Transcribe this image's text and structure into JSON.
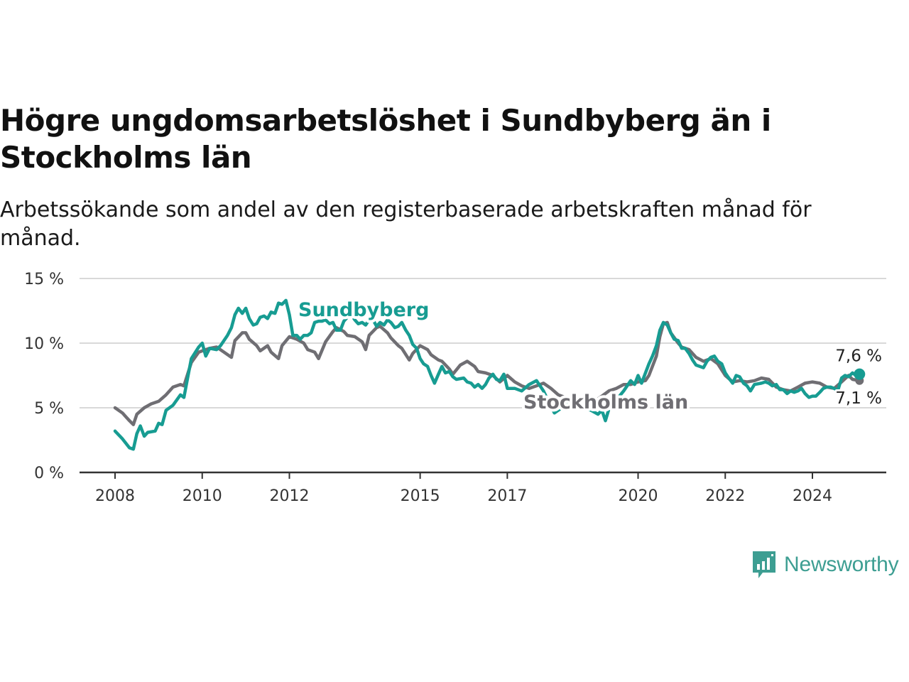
{
  "title": "Högre ungdomsarbetslöshet i Sundbyberg än i Stockholms län",
  "subtitle": "Arbetssökande som andel av den registerbaserade arbetskraften månad för månad.",
  "brand": {
    "name": "Newsworthy",
    "icon": "bar-chart-speech-bubble-icon",
    "color": "#3d9e92"
  },
  "chart_data": {
    "type": "line",
    "ylim": [
      0,
      15
    ],
    "y_ticks": [
      0,
      5,
      10,
      15
    ],
    "y_tick_labels": [
      "0 %",
      "5 %",
      "10 %",
      "15 %"
    ],
    "x_tick_labels": [
      "2008",
      "2010",
      "2012",
      "2015",
      "2017",
      "2020",
      "2022",
      "2024"
    ],
    "x_tick_values": [
      2008.0,
      2010.0,
      2012.0,
      2015.0,
      2017.0,
      2020.0,
      2022.0,
      2024.0
    ],
    "grid": true,
    "xlim": [
      2007.25,
      2025.8
    ],
    "series": [
      {
        "name": "Sundbyberg",
        "color": "#179c92",
        "end_label": "7,6 %",
        "points": [
          [
            2008.0,
            3.2
          ],
          [
            2008.17,
            2.6
          ],
          [
            2008.33,
            1.9
          ],
          [
            2008.42,
            1.8
          ],
          [
            2008.5,
            3.0
          ],
          [
            2008.58,
            3.6
          ],
          [
            2008.67,
            2.8
          ],
          [
            2008.75,
            3.1
          ],
          [
            2008.92,
            3.2
          ],
          [
            2009.0,
            3.8
          ],
          [
            2009.08,
            3.7
          ],
          [
            2009.17,
            4.8
          ],
          [
            2009.33,
            5.2
          ],
          [
            2009.5,
            6.0
          ],
          [
            2009.58,
            5.8
          ],
          [
            2009.75,
            8.8
          ],
          [
            2009.92,
            9.7
          ],
          [
            2010.0,
            10.0
          ],
          [
            2010.08,
            9.0
          ],
          [
            2010.17,
            9.6
          ],
          [
            2010.33,
            9.5
          ],
          [
            2010.42,
            9.8
          ],
          [
            2010.58,
            10.6
          ],
          [
            2010.67,
            11.2
          ],
          [
            2010.75,
            12.2
          ],
          [
            2010.83,
            12.7
          ],
          [
            2010.92,
            12.3
          ],
          [
            2011.0,
            12.7
          ],
          [
            2011.08,
            11.9
          ],
          [
            2011.17,
            11.4
          ],
          [
            2011.25,
            11.5
          ],
          [
            2011.33,
            12.0
          ],
          [
            2011.42,
            12.1
          ],
          [
            2011.5,
            11.9
          ],
          [
            2011.58,
            12.4
          ],
          [
            2011.67,
            12.3
          ],
          [
            2011.75,
            13.1
          ],
          [
            2011.83,
            13.0
          ],
          [
            2011.92,
            13.3
          ],
          [
            2012.0,
            12.2
          ],
          [
            2012.08,
            10.6
          ],
          [
            2012.17,
            10.6
          ],
          [
            2012.25,
            10.3
          ],
          [
            2012.33,
            10.6
          ],
          [
            2012.42,
            10.6
          ],
          [
            2012.5,
            10.8
          ],
          [
            2012.58,
            11.6
          ],
          [
            2012.67,
            11.7
          ],
          [
            2012.75,
            11.7
          ],
          [
            2012.83,
            11.8
          ],
          [
            2012.92,
            11.5
          ],
          [
            2013.0,
            11.6
          ],
          [
            2013.08,
            11.0
          ],
          [
            2013.17,
            11.0
          ],
          [
            2013.25,
            11.7
          ],
          [
            2013.33,
            12.0
          ],
          [
            2013.42,
            12.2
          ],
          [
            2013.5,
            11.8
          ],
          [
            2013.58,
            11.5
          ],
          [
            2013.67,
            11.6
          ],
          [
            2013.75,
            11.4
          ],
          [
            2013.83,
            11.8
          ],
          [
            2013.92,
            11.8
          ],
          [
            2014.0,
            11.3
          ],
          [
            2014.08,
            11.6
          ],
          [
            2014.17,
            11.4
          ],
          [
            2014.25,
            11.8
          ],
          [
            2014.33,
            11.6
          ],
          [
            2014.42,
            11.2
          ],
          [
            2014.5,
            11.3
          ],
          [
            2014.58,
            11.6
          ],
          [
            2014.67,
            11.0
          ],
          [
            2014.75,
            10.6
          ],
          [
            2014.83,
            9.9
          ],
          [
            2014.92,
            9.6
          ],
          [
            2015.0,
            8.8
          ],
          [
            2015.08,
            8.4
          ],
          [
            2015.17,
            8.2
          ],
          [
            2015.25,
            7.5
          ],
          [
            2015.33,
            6.9
          ],
          [
            2015.42,
            7.6
          ],
          [
            2015.5,
            8.2
          ],
          [
            2015.58,
            7.7
          ],
          [
            2015.67,
            7.8
          ],
          [
            2015.75,
            7.4
          ],
          [
            2015.83,
            7.2
          ],
          [
            2016.0,
            7.3
          ],
          [
            2016.08,
            7.0
          ],
          [
            2016.17,
            6.9
          ],
          [
            2016.25,
            6.6
          ],
          [
            2016.33,
            6.8
          ],
          [
            2016.42,
            6.5
          ],
          [
            2016.5,
            6.8
          ],
          [
            2016.58,
            7.3
          ],
          [
            2016.67,
            7.6
          ],
          [
            2016.75,
            7.2
          ],
          [
            2016.83,
            7.1
          ],
          [
            2016.92,
            7.6
          ],
          [
            2017.0,
            6.5
          ],
          [
            2017.17,
            6.5
          ],
          [
            2017.33,
            6.3
          ],
          [
            2017.5,
            6.8
          ],
          [
            2017.67,
            7.1
          ],
          [
            2017.83,
            6.3
          ],
          [
            2018.0,
            5.1
          ],
          [
            2018.08,
            4.6
          ],
          [
            2018.25,
            5.0
          ],
          [
            2018.42,
            5.3
          ],
          [
            2018.58,
            5.4
          ],
          [
            2018.75,
            5.0
          ],
          [
            2018.92,
            4.8
          ],
          [
            2019.08,
            4.5
          ],
          [
            2019.17,
            4.8
          ],
          [
            2019.25,
            4.0
          ],
          [
            2019.33,
            4.9
          ],
          [
            2019.5,
            5.6
          ],
          [
            2019.67,
            6.3
          ],
          [
            2019.83,
            7.1
          ],
          [
            2019.92,
            6.8
          ],
          [
            2020.0,
            7.5
          ],
          [
            2020.08,
            6.9
          ],
          [
            2020.17,
            7.7
          ],
          [
            2020.25,
            8.4
          ],
          [
            2020.33,
            9.0
          ],
          [
            2020.42,
            9.8
          ],
          [
            2020.5,
            11.0
          ],
          [
            2020.58,
            11.6
          ],
          [
            2020.67,
            11.4
          ],
          [
            2020.75,
            10.8
          ],
          [
            2020.83,
            10.3
          ],
          [
            2020.92,
            10.2
          ],
          [
            2021.0,
            9.6
          ],
          [
            2021.08,
            9.6
          ],
          [
            2021.17,
            9.2
          ],
          [
            2021.25,
            8.7
          ],
          [
            2021.33,
            8.3
          ],
          [
            2021.5,
            8.1
          ],
          [
            2021.58,
            8.6
          ],
          [
            2021.67,
            8.9
          ],
          [
            2021.75,
            9.0
          ],
          [
            2021.83,
            8.6
          ],
          [
            2021.92,
            8.4
          ],
          [
            2022.0,
            7.7
          ],
          [
            2022.08,
            7.3
          ],
          [
            2022.17,
            6.9
          ],
          [
            2022.25,
            7.5
          ],
          [
            2022.33,
            7.4
          ],
          [
            2022.42,
            6.9
          ],
          [
            2022.5,
            6.7
          ],
          [
            2022.58,
            6.3
          ],
          [
            2022.67,
            6.8
          ],
          [
            2022.83,
            6.9
          ],
          [
            2022.92,
            7.0
          ],
          [
            2023.0,
            6.9
          ],
          [
            2023.08,
            6.7
          ],
          [
            2023.17,
            6.8
          ],
          [
            2023.25,
            6.4
          ],
          [
            2023.33,
            6.4
          ],
          [
            2023.42,
            6.1
          ],
          [
            2023.5,
            6.3
          ],
          [
            2023.58,
            6.2
          ],
          [
            2023.67,
            6.3
          ],
          [
            2023.75,
            6.5
          ],
          [
            2023.83,
            6.1
          ],
          [
            2023.92,
            5.8
          ],
          [
            2024.0,
            5.9
          ],
          [
            2024.08,
            5.9
          ],
          [
            2024.17,
            6.2
          ],
          [
            2024.25,
            6.5
          ],
          [
            2024.33,
            6.6
          ],
          [
            2024.42,
            6.6
          ],
          [
            2024.5,
            6.5
          ],
          [
            2024.58,
            6.3
          ],
          [
            2024.67,
            7.3
          ],
          [
            2024.75,
            7.5
          ],
          [
            2024.83,
            7.4
          ],
          [
            2024.92,
            7.7
          ],
          [
            2025.0,
            7.5
          ],
          [
            2025.08,
            7.6
          ]
        ]
      },
      {
        "name": "Stockholms län",
        "color": "#6f6e73",
        "end_label": "7,1 %",
        "points": [
          [
            2008.0,
            5.0
          ],
          [
            2008.17,
            4.6
          ],
          [
            2008.25,
            4.3
          ],
          [
            2008.33,
            4.0
          ],
          [
            2008.42,
            3.7
          ],
          [
            2008.5,
            4.5
          ],
          [
            2008.67,
            5.0
          ],
          [
            2008.83,
            5.3
          ],
          [
            2009.0,
            5.5
          ],
          [
            2009.17,
            6.0
          ],
          [
            2009.33,
            6.6
          ],
          [
            2009.5,
            6.8
          ],
          [
            2009.58,
            6.7
          ],
          [
            2009.75,
            8.5
          ],
          [
            2009.92,
            9.3
          ],
          [
            2010.0,
            9.4
          ],
          [
            2010.17,
            9.6
          ],
          [
            2010.33,
            9.7
          ],
          [
            2010.5,
            9.3
          ],
          [
            2010.67,
            8.9
          ],
          [
            2010.75,
            10.2
          ],
          [
            2010.92,
            10.8
          ],
          [
            2011.0,
            10.8
          ],
          [
            2011.08,
            10.3
          ],
          [
            2011.25,
            9.8
          ],
          [
            2011.33,
            9.4
          ],
          [
            2011.5,
            9.8
          ],
          [
            2011.58,
            9.3
          ],
          [
            2011.75,
            8.8
          ],
          [
            2011.83,
            9.8
          ],
          [
            2012.0,
            10.5
          ],
          [
            2012.17,
            10.3
          ],
          [
            2012.33,
            10.0
          ],
          [
            2012.42,
            9.5
          ],
          [
            2012.58,
            9.3
          ],
          [
            2012.67,
            8.8
          ],
          [
            2012.83,
            10.1
          ],
          [
            2013.0,
            10.9
          ],
          [
            2013.08,
            11.2
          ],
          [
            2013.25,
            10.9
          ],
          [
            2013.33,
            10.6
          ],
          [
            2013.5,
            10.5
          ],
          [
            2013.67,
            10.1
          ],
          [
            2013.75,
            9.5
          ],
          [
            2013.83,
            10.6
          ],
          [
            2014.0,
            11.2
          ],
          [
            2014.08,
            11.3
          ],
          [
            2014.25,
            10.8
          ],
          [
            2014.33,
            10.4
          ],
          [
            2014.5,
            9.8
          ],
          [
            2014.58,
            9.6
          ],
          [
            2014.75,
            8.7
          ],
          [
            2014.83,
            9.2
          ],
          [
            2015.0,
            9.8
          ],
          [
            2015.17,
            9.5
          ],
          [
            2015.25,
            9.1
          ],
          [
            2015.42,
            8.7
          ],
          [
            2015.5,
            8.6
          ],
          [
            2015.67,
            8.0
          ],
          [
            2015.75,
            7.6
          ],
          [
            2015.92,
            8.3
          ],
          [
            2016.08,
            8.6
          ],
          [
            2016.25,
            8.2
          ],
          [
            2016.33,
            7.8
          ],
          [
            2016.5,
            7.7
          ],
          [
            2016.67,
            7.5
          ],
          [
            2016.83,
            7.0
          ],
          [
            2017.0,
            7.5
          ],
          [
            2017.17,
            7.0
          ],
          [
            2017.33,
            6.7
          ],
          [
            2017.5,
            6.5
          ],
          [
            2017.67,
            6.7
          ],
          [
            2017.83,
            6.9
          ],
          [
            2018.0,
            6.5
          ],
          [
            2018.17,
            6.0
          ],
          [
            2018.33,
            5.8
          ],
          [
            2018.5,
            5.3
          ],
          [
            2018.67,
            5.2
          ],
          [
            2018.83,
            5.0
          ],
          [
            2019.0,
            5.5
          ],
          [
            2019.17,
            5.9
          ],
          [
            2019.33,
            6.3
          ],
          [
            2019.5,
            6.5
          ],
          [
            2019.67,
            6.8
          ],
          [
            2019.83,
            6.8
          ],
          [
            2020.0,
            7.0
          ],
          [
            2020.17,
            7.1
          ],
          [
            2020.25,
            7.5
          ],
          [
            2020.42,
            9.0
          ],
          [
            2020.5,
            10.5
          ],
          [
            2020.58,
            11.5
          ],
          [
            2020.67,
            11.6
          ],
          [
            2020.75,
            10.8
          ],
          [
            2020.92,
            10.0
          ],
          [
            2021.0,
            9.7
          ],
          [
            2021.17,
            9.5
          ],
          [
            2021.33,
            8.9
          ],
          [
            2021.5,
            8.6
          ],
          [
            2021.67,
            8.8
          ],
          [
            2021.83,
            8.4
          ],
          [
            2022.0,
            7.5
          ],
          [
            2022.17,
            7.0
          ],
          [
            2022.33,
            7.1
          ],
          [
            2022.5,
            7.0
          ],
          [
            2022.67,
            7.1
          ],
          [
            2022.83,
            7.3
          ],
          [
            2023.0,
            7.2
          ],
          [
            2023.17,
            6.6
          ],
          [
            2023.33,
            6.4
          ],
          [
            2023.5,
            6.3
          ],
          [
            2023.67,
            6.6
          ],
          [
            2023.83,
            6.9
          ],
          [
            2024.0,
            7.0
          ],
          [
            2024.17,
            6.9
          ],
          [
            2024.33,
            6.6
          ],
          [
            2024.5,
            6.5
          ],
          [
            2024.67,
            7.0
          ],
          [
            2024.83,
            7.5
          ],
          [
            2024.92,
            7.2
          ],
          [
            2025.08,
            7.1
          ]
        ]
      }
    ]
  }
}
